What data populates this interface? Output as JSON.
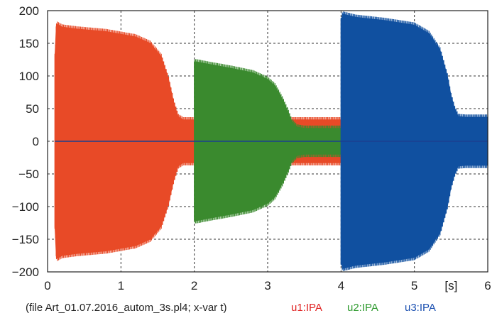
{
  "chart_data": {
    "type": "line",
    "xlabel": "",
    "x_unit": "[s]",
    "xlim": [
      0,
      6
    ],
    "ylim": [
      -200,
      200
    ],
    "xticks": [
      0,
      1,
      2,
      3,
      4,
      5,
      6
    ],
    "yticks": [
      200,
      150,
      100,
      50,
      0,
      -50,
      -100,
      -150,
      -200
    ],
    "grid": true,
    "legend_position": "bottom",
    "series": [
      {
        "name": "u1:IPA",
        "color": "#e84a27",
        "envelope": {
          "t": [
            0.1,
            0.12,
            0.2,
            0.4,
            0.8,
            1.2,
            1.4,
            1.55,
            1.65,
            1.72,
            1.78,
            1.85,
            1.9,
            2.0,
            2.0,
            3.35,
            3.4,
            4.0
          ],
          "amp": [
            130,
            180,
            175,
            172,
            168,
            160,
            150,
            130,
            95,
            60,
            38,
            33,
            33,
            33,
            33,
            33,
            33,
            33
          ]
        }
      },
      {
        "name": "u2:IPA",
        "color": "#3a8a2e",
        "envelope": {
          "t": [
            2.0,
            2.02,
            2.2,
            2.5,
            2.8,
            3.0,
            3.1,
            3.2,
            3.28,
            3.33,
            3.4,
            3.5,
            4.0
          ],
          "amp": [
            120,
            122,
            118,
            112,
            105,
            95,
            85,
            65,
            45,
            30,
            22,
            20,
            20
          ]
        }
      },
      {
        "name": "u3:IPA",
        "color": "#1050a0",
        "envelope": {
          "t": [
            4.0,
            4.02,
            4.2,
            4.6,
            5.0,
            5.2,
            5.35,
            5.45,
            5.5,
            5.55,
            5.6,
            5.7,
            6.0
          ],
          "amp": [
            185,
            195,
            190,
            185,
            178,
            165,
            140,
            100,
            70,
            50,
            38,
            37,
            37
          ]
        }
      }
    ],
    "footer_file": "(file Art_01.07.2016_autom_3s.pl4; x-var t)"
  }
}
